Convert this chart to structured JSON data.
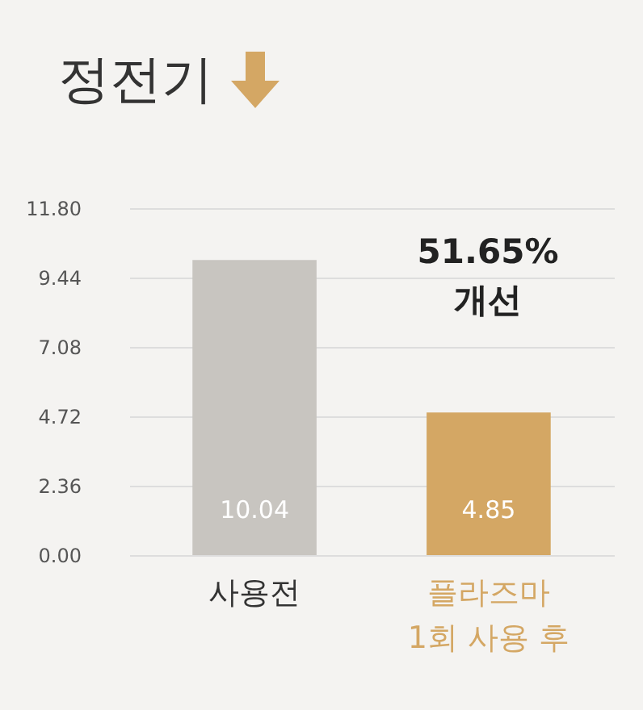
{
  "chart_data": {
    "type": "bar",
    "title": "정전기",
    "categories": [
      "사용전",
      "플라즈마\n1회 사용 후"
    ],
    "values": [
      10.04,
      4.85
    ],
    "colors": [
      "#c8c5c0",
      "#d4a764"
    ],
    "ylim": [
      0,
      11.8
    ],
    "yticks": [
      {
        "value": 0,
        "label": "0.00"
      },
      {
        "value": 2.36,
        "label": "2.36"
      },
      {
        "value": 4.72,
        "label": "4.72"
      },
      {
        "value": 7.08,
        "label": "7.08"
      },
      {
        "value": 9.44,
        "label": "9.44"
      },
      {
        "value": 11.8,
        "label": "11.80"
      }
    ],
    "grid": "y",
    "data_labels": true,
    "annotations": [
      "51.65%\n개선"
    ]
  }
}
